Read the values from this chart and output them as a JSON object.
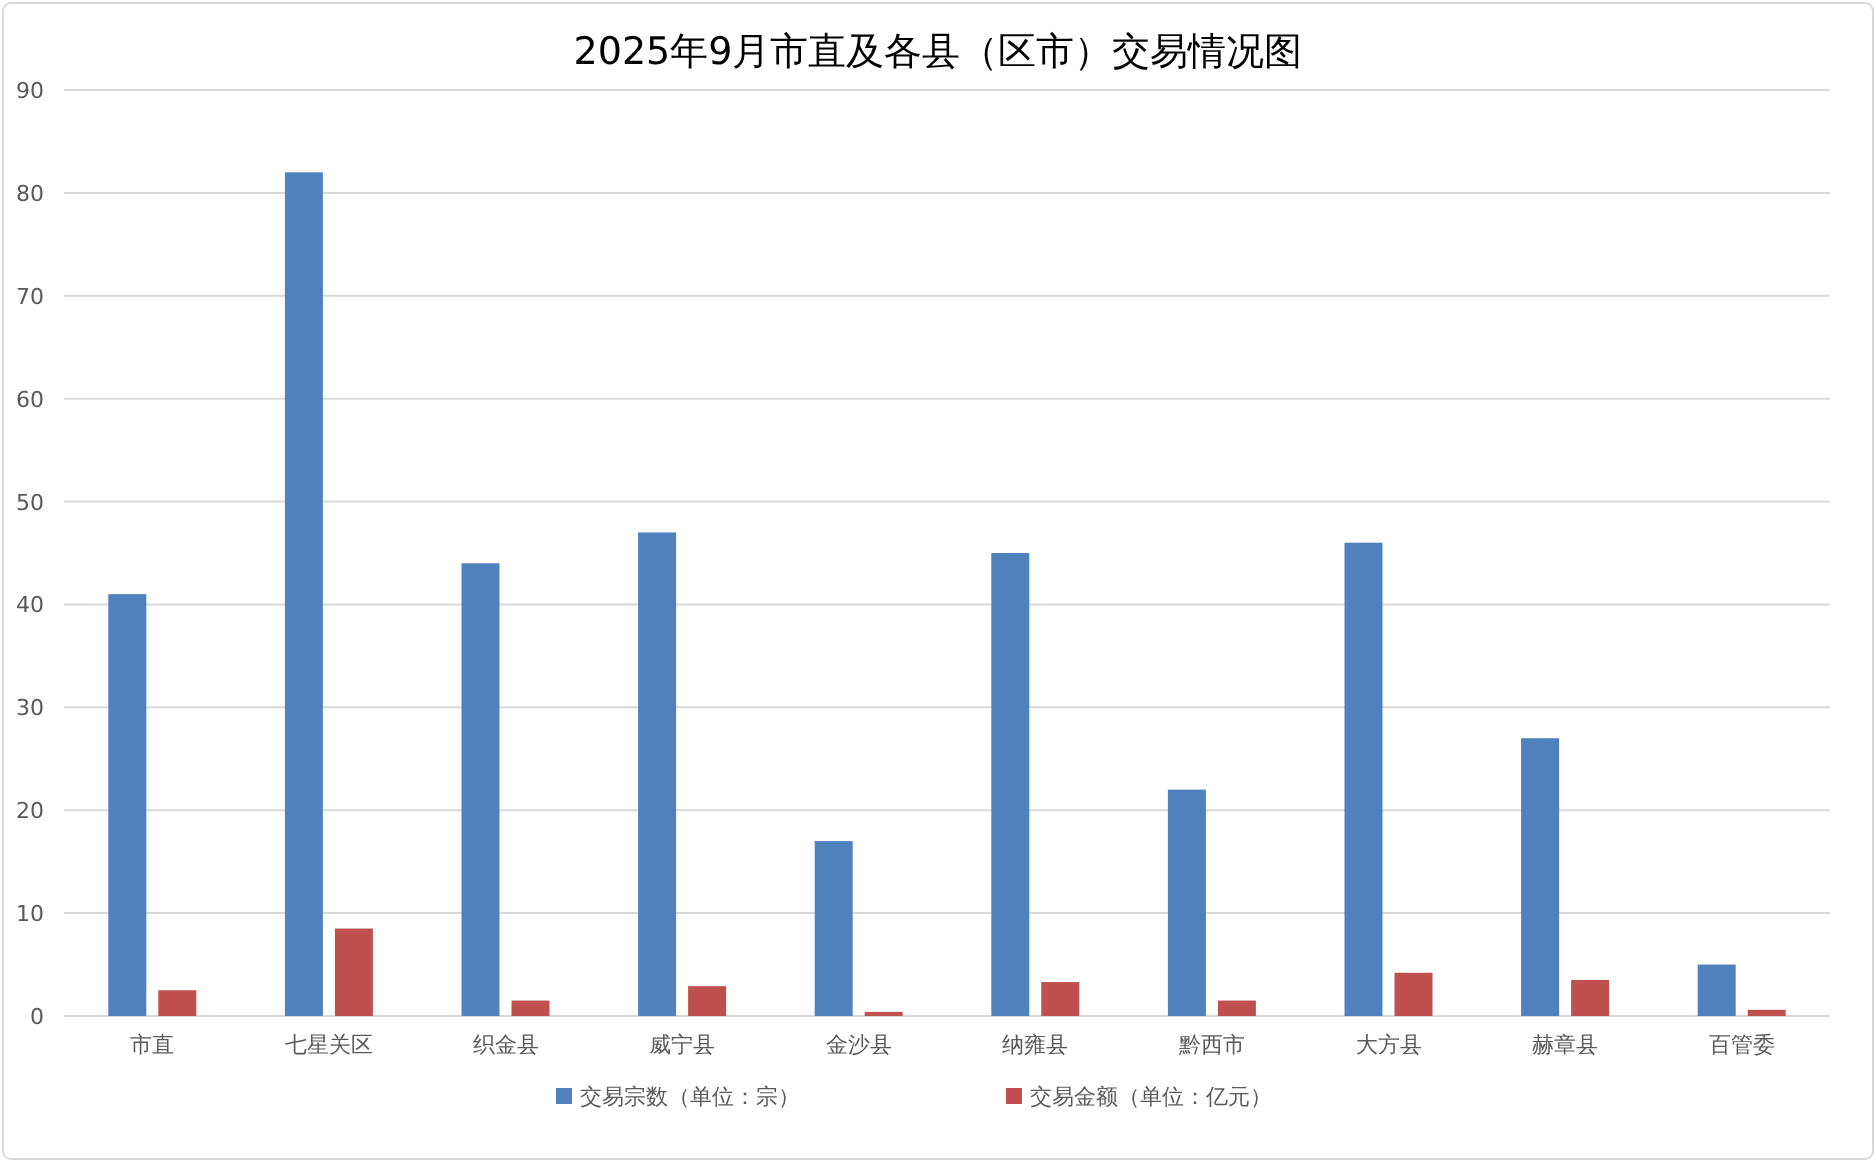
{
  "chart_data": {
    "type": "bar",
    "title": "2025年9月市直及各县（区市）交易情况图",
    "categories": [
      "市直",
      "七星关区",
      "织金县",
      "威宁县",
      "金沙县",
      "纳雍县",
      "黔西市",
      "大方县",
      "赫章县",
      "百管委"
    ],
    "series": [
      {
        "name": "交易宗数（单位：宗）",
        "color": "#4f81bd",
        "values": [
          41,
          82,
          44,
          47,
          17,
          45,
          22,
          46,
          27,
          5
        ]
      },
      {
        "name": "交易金额（单位：亿元）",
        "color": "#c0504d",
        "values": [
          2.5,
          8.5,
          1.5,
          2.9,
          0.4,
          3.3,
          1.5,
          4.2,
          3.5,
          0.6
        ]
      }
    ],
    "ylim": [
      0,
      90
    ],
    "yticks": [
      0,
      10,
      20,
      30,
      40,
      50,
      60,
      70,
      80,
      90
    ],
    "grid": "y",
    "legend": "bottom"
  }
}
